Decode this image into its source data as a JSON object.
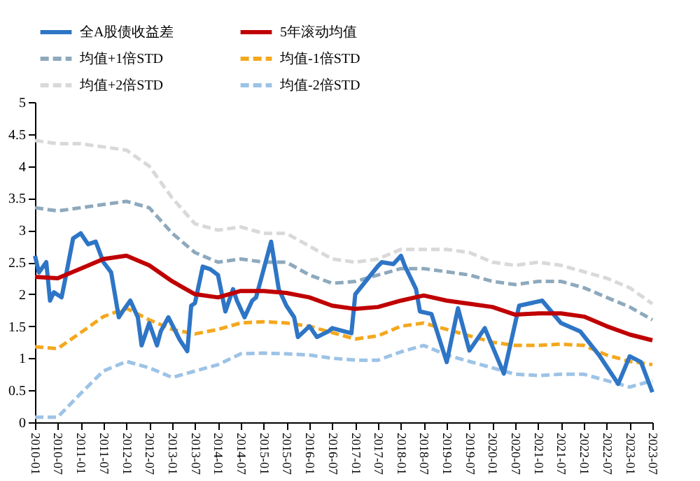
{
  "chart_data": {
    "type": "line",
    "legend": "top",
    "grid": false,
    "marker": "none",
    "xlim": [
      "2010-01",
      "2023-07"
    ],
    "xticks": [
      "2010-01",
      "2010-07",
      "2011-01",
      "2011-07",
      "2012-01",
      "2012-07",
      "2013-01",
      "2013-07",
      "2014-01",
      "2014-07",
      "2015-01",
      "2015-07",
      "2016-01",
      "2016-07",
      "2017-01",
      "2017-07",
      "2018-01",
      "2018-07",
      "2019-01",
      "2019-07",
      "2020-01",
      "2020-07",
      "2021-01",
      "2021-07",
      "2022-01",
      "2022-07",
      "2023-01",
      "2023-07"
    ],
    "ylim": [
      0,
      5
    ],
    "yticks": [
      0,
      0.5,
      1,
      1.5,
      2,
      2.5,
      3,
      3.5,
      4,
      4.5,
      5
    ],
    "series": [
      {
        "name": "全A股债收益差",
        "color": "#2e75c6",
        "line_style": "solid",
        "x": [
          "2010-01",
          "2010-02",
          "2010-04",
          "2010-05",
          "2010-06",
          "2010-08",
          "2010-09",
          "2010-11",
          "2011-01",
          "2011-03",
          "2011-05",
          "2011-07",
          "2011-09",
          "2011-11",
          "2011-12",
          "2012-02",
          "2012-04",
          "2012-05",
          "2012-07",
          "2012-09",
          "2012-10",
          "2012-12",
          "2013-03",
          "2013-05",
          "2013-06",
          "2013-07",
          "2013-09",
          "2013-11",
          "2014-01",
          "2014-03",
          "2014-05",
          "2014-06",
          "2014-08",
          "2014-10",
          "2014-11",
          "2015-01",
          "2015-03",
          "2015-05",
          "2015-07",
          "2015-09",
          "2015-10",
          "2016-01",
          "2016-03",
          "2016-06",
          "2016-07",
          "2016-12",
          "2017-01",
          "2017-07",
          "2017-08",
          "2017-11",
          "2018-01",
          "2018-02",
          "2018-05",
          "2018-06",
          "2018-09",
          "2019-01",
          "2019-04",
          "2019-07",
          "2019-11",
          "2020-04",
          "2020-08",
          "2021-02",
          "2021-07",
          "2021-12",
          "2022-05",
          "2022-10",
          "2023-01",
          "2023-04",
          "2023-07"
        ],
        "values": [
          2.6,
          2.34,
          2.5,
          1.9,
          2.03,
          1.95,
          2.25,
          2.87,
          2.95,
          2.78,
          2.82,
          2.5,
          2.34,
          1.64,
          1.73,
          1.9,
          1.64,
          1.2,
          1.55,
          1.2,
          1.42,
          1.64,
          1.29,
          1.11,
          1.82,
          1.86,
          2.43,
          2.39,
          2.3,
          1.73,
          2.08,
          1.9,
          1.64,
          1.9,
          1.95,
          2.39,
          2.82,
          2.08,
          1.82,
          1.64,
          1.33,
          1.5,
          1.33,
          1.42,
          1.47,
          1.39,
          2.0,
          2.44,
          2.5,
          2.47,
          2.6,
          2.44,
          2.08,
          1.73,
          1.69,
          0.94,
          1.78,
          1.12,
          1.47,
          0.76,
          1.82,
          1.9,
          1.55,
          1.42,
          1.05,
          0.6,
          1.03,
          0.94,
          0.47
        ]
      },
      {
        "name": "5年滚动均值",
        "color": "#c00000",
        "line_style": "solid",
        "x": [
          "2010-01",
          "2010-07",
          "2011-01",
          "2011-07",
          "2012-01",
          "2012-07",
          "2013-01",
          "2013-07",
          "2014-01",
          "2014-07",
          "2015-01",
          "2015-07",
          "2016-01",
          "2016-07",
          "2017-01",
          "2017-07",
          "2018-01",
          "2018-07",
          "2019-01",
          "2019-07",
          "2020-01",
          "2020-07",
          "2021-01",
          "2021-07",
          "2022-01",
          "2022-07",
          "2023-01",
          "2023-07"
        ],
        "values": [
          2.27,
          2.25,
          2.4,
          2.55,
          2.6,
          2.45,
          2.2,
          2.0,
          1.95,
          2.05,
          2.05,
          2.02,
          1.95,
          1.82,
          1.77,
          1.8,
          1.9,
          1.98,
          1.9,
          1.85,
          1.8,
          1.68,
          1.7,
          1.7,
          1.65,
          1.5,
          1.37,
          1.28
        ]
      },
      {
        "name": "均值+1倍STD",
        "color": "#8ea9bd",
        "line_style": "dashed",
        "x": [
          "2010-01",
          "2010-07",
          "2011-01",
          "2011-07",
          "2012-01",
          "2012-07",
          "2013-01",
          "2013-07",
          "2014-01",
          "2014-07",
          "2015-01",
          "2015-07",
          "2016-01",
          "2016-07",
          "2017-01",
          "2017-07",
          "2018-01",
          "2018-07",
          "2019-01",
          "2019-07",
          "2020-01",
          "2020-07",
          "2021-01",
          "2021-07",
          "2022-01",
          "2022-07",
          "2023-01",
          "2023-07"
        ],
        "values": [
          3.35,
          3.3,
          3.35,
          3.4,
          3.45,
          3.35,
          2.95,
          2.65,
          2.5,
          2.55,
          2.5,
          2.5,
          2.3,
          2.17,
          2.2,
          2.3,
          2.4,
          2.4,
          2.35,
          2.3,
          2.2,
          2.15,
          2.2,
          2.2,
          2.1,
          1.95,
          1.8,
          1.6
        ]
      },
      {
        "name": "均值-1倍STD",
        "color": "#f4a81e",
        "line_style": "dashed",
        "x": [
          "2010-01",
          "2010-07",
          "2011-01",
          "2011-07",
          "2012-01",
          "2012-07",
          "2013-01",
          "2013-07",
          "2014-01",
          "2014-07",
          "2015-01",
          "2015-07",
          "2016-01",
          "2016-07",
          "2017-01",
          "2017-07",
          "2018-01",
          "2018-07",
          "2019-01",
          "2019-07",
          "2020-01",
          "2020-07",
          "2021-01",
          "2021-07",
          "2022-01",
          "2022-07",
          "2023-01",
          "2023-07"
        ],
        "values": [
          1.18,
          1.15,
          1.4,
          1.65,
          1.78,
          1.6,
          1.45,
          1.38,
          1.45,
          1.55,
          1.57,
          1.55,
          1.5,
          1.4,
          1.3,
          1.35,
          1.5,
          1.55,
          1.45,
          1.35,
          1.25,
          1.2,
          1.2,
          1.22,
          1.2,
          1.05,
          0.95,
          0.9
        ]
      },
      {
        "name": "均值+2倍STD",
        "color": "#d9d9d9",
        "line_style": "dashed",
        "x": [
          "2010-01",
          "2010-07",
          "2011-01",
          "2011-07",
          "2012-01",
          "2012-07",
          "2013-01",
          "2013-07",
          "2014-01",
          "2014-07",
          "2015-01",
          "2015-07",
          "2016-01",
          "2016-07",
          "2017-01",
          "2017-07",
          "2018-01",
          "2018-07",
          "2019-01",
          "2019-07",
          "2020-01",
          "2020-07",
          "2021-01",
          "2021-07",
          "2022-01",
          "2022-07",
          "2023-01",
          "2023-07"
        ],
        "values": [
          4.4,
          4.35,
          4.35,
          4.3,
          4.25,
          4.0,
          3.5,
          3.1,
          3.0,
          3.05,
          2.95,
          2.95,
          2.75,
          2.55,
          2.5,
          2.55,
          2.7,
          2.7,
          2.7,
          2.65,
          2.5,
          2.45,
          2.5,
          2.45,
          2.35,
          2.25,
          2.1,
          1.85
        ]
      },
      {
        "name": "均值-2倍STD",
        "color": "#9dc3e6",
        "line_style": "dashed",
        "x": [
          "2010-01",
          "2010-07",
          "2011-01",
          "2011-07",
          "2012-01",
          "2012-07",
          "2013-01",
          "2013-07",
          "2014-01",
          "2014-07",
          "2015-01",
          "2015-07",
          "2016-01",
          "2016-07",
          "2017-01",
          "2017-07",
          "2018-01",
          "2018-07",
          "2019-01",
          "2019-07",
          "2020-01",
          "2020-07",
          "2021-01",
          "2021-07",
          "2022-01",
          "2022-07",
          "2023-01",
          "2023-07"
        ],
        "values": [
          0.08,
          0.08,
          0.45,
          0.8,
          0.95,
          0.85,
          0.7,
          0.8,
          0.9,
          1.07,
          1.08,
          1.07,
          1.05,
          1.0,
          0.97,
          0.97,
          1.1,
          1.2,
          1.05,
          0.95,
          0.85,
          0.75,
          0.73,
          0.75,
          0.75,
          0.65,
          0.55,
          0.65
        ]
      }
    ]
  }
}
